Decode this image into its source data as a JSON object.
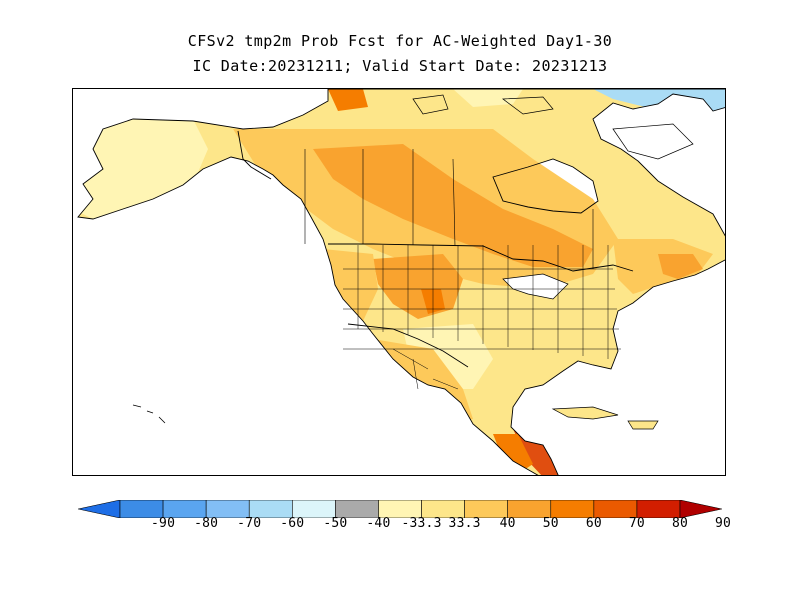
{
  "title": {
    "line1": "CFSv2 tmp2m Prob Fcst for AC-Weighted Day1-30",
    "line2": "IC Date:20231211; Valid Start Date: 20231213"
  },
  "colorbar": {
    "colors": [
      "#1e6ee6",
      "#3c8ce6",
      "#5aa5f0",
      "#82bef5",
      "#aadcf5",
      "#dcf5fa",
      "#aaaaaa",
      "#fff5b4",
      "#fde68a",
      "#fdc95a",
      "#f9a32f",
      "#f57d00",
      "#ea5a00",
      "#d21e00",
      "#b00000"
    ],
    "labels": [
      "-90",
      "-80",
      "-70",
      "-60",
      "-50",
      "-40",
      "-33.3",
      "33.3",
      "40",
      "50",
      "60",
      "70",
      "80",
      "90"
    ]
  },
  "map": {
    "palette": {
      "land_default": "#fde68a",
      "p40": "#fff5b4",
      "p50": "#fde68a",
      "p60": "#fdc95a",
      "p70": "#f9a32f",
      "p80": "#f57d00",
      "p90": "#e04e10",
      "cold40": "#dcf5fa",
      "cold50": "#aadcf5",
      "water": "#ffffff",
      "border": "#000000"
    }
  }
}
